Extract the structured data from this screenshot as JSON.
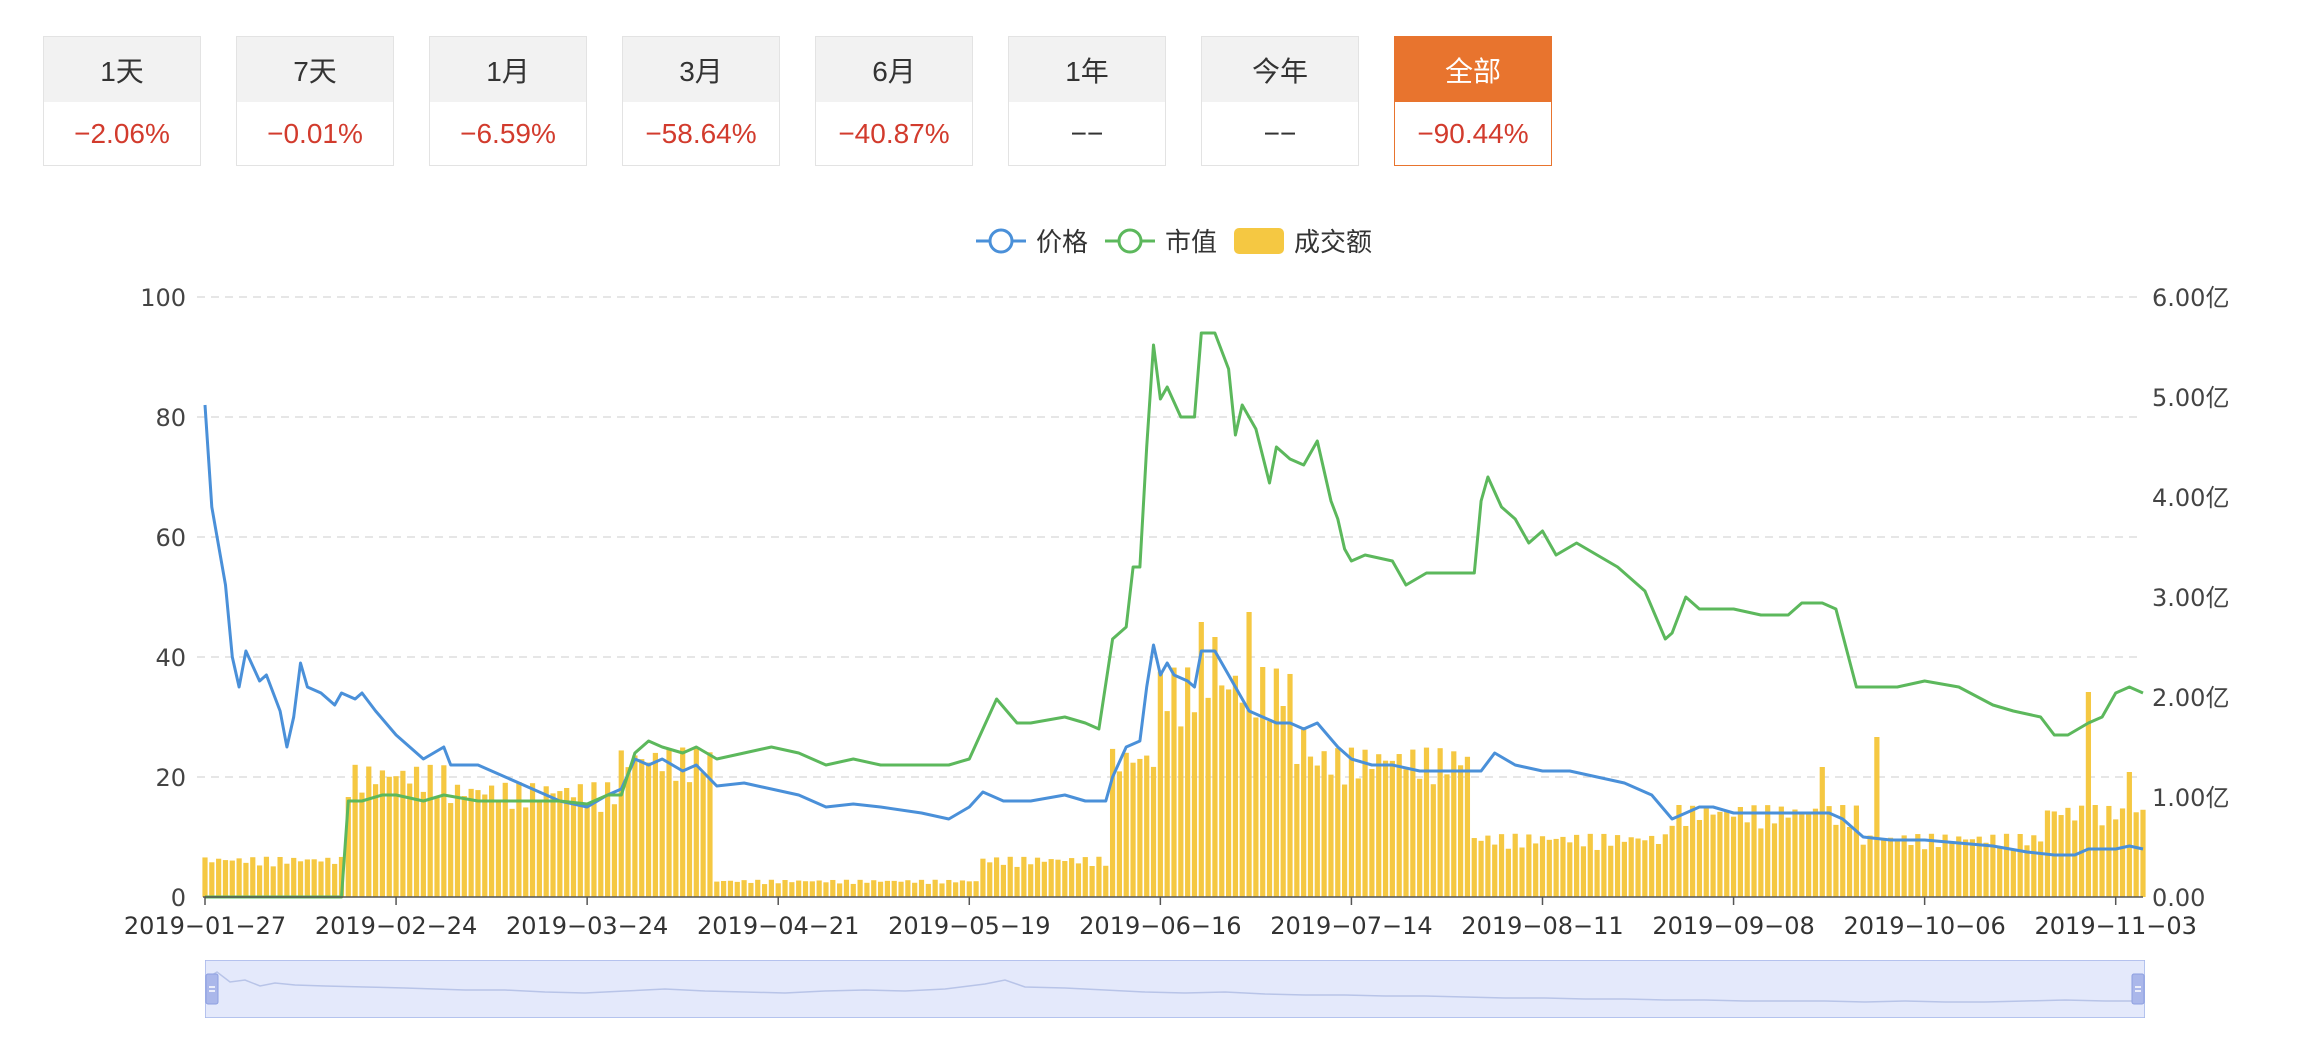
{
  "tabs": [
    {
      "label": "1天",
      "value": "−2.06%",
      "active": false,
      "neutral": false
    },
    {
      "label": "7天",
      "value": "−0.01%",
      "active": false,
      "neutral": false
    },
    {
      "label": "1月",
      "value": "−6.59%",
      "active": false,
      "neutral": false
    },
    {
      "label": "3月",
      "value": "−58.64%",
      "active": false,
      "neutral": false
    },
    {
      "label": "6月",
      "value": "−40.87%",
      "active": false,
      "neutral": false
    },
    {
      "label": "1年",
      "value": "−−",
      "active": false,
      "neutral": true
    },
    {
      "label": "今年",
      "value": "−−",
      "active": false,
      "neutral": true
    },
    {
      "label": "全部",
      "value": "−90.44%",
      "active": true,
      "neutral": false
    }
  ],
  "colors": {
    "price": "#4a90d9",
    "market_cap": "#5cb85c",
    "volume": "#f5c842",
    "accent": "#e8742e",
    "negative": "#d23b2d"
  },
  "chart_data": {
    "type": "line",
    "x_tick_labels": [
      "2019−01−27",
      "2019−02−24",
      "2019−03−24",
      "2019−04−21",
      "2019−05−19",
      "2019−06−16",
      "2019−07−14",
      "2019−08−11",
      "2019−09−08",
      "2019−10−06",
      "2019−11−03"
    ],
    "x_ticks": [
      "2019-01-27",
      "2019-02-24",
      "2019-03-24",
      "2019-04-21",
      "2019-05-19",
      "2019-06-16",
      "2019-07-14",
      "2019-08-11",
      "2019-09-08",
      "2019-10-06",
      "2019-11-03"
    ],
    "x_range": [
      "2019-01-27",
      "2019-11-07"
    ],
    "left_axis": {
      "min": 0,
      "max": 100,
      "ticks": [
        0,
        20,
        40,
        60,
        80,
        100
      ],
      "tick_labels": [
        "0",
        "20",
        "40",
        "60",
        "80",
        "100"
      ]
    },
    "right_axis": {
      "min": 0,
      "max": 6,
      "tick_labels": [
        "0.00",
        "1.00亿",
        "2.00亿",
        "3.00亿",
        "4.00亿",
        "5.00亿",
        "6.00亿"
      ]
    },
    "grid": true,
    "legend_position": "top-center",
    "series": [
      {
        "name": "价格",
        "kind": "line",
        "axis": "left",
        "points": [
          [
            "2019-01-27",
            82
          ],
          [
            "2019-01-28",
            65
          ],
          [
            "2019-01-30",
            52
          ],
          [
            "2019-01-31",
            40
          ],
          [
            "2019-02-01",
            35
          ],
          [
            "2019-02-02",
            41
          ],
          [
            "2019-02-04",
            36
          ],
          [
            "2019-02-05",
            37
          ],
          [
            "2019-02-07",
            31
          ],
          [
            "2019-02-08",
            25
          ],
          [
            "2019-02-09",
            30
          ],
          [
            "2019-02-10",
            39
          ],
          [
            "2019-02-11",
            35
          ],
          [
            "2019-02-13",
            34
          ],
          [
            "2019-02-15",
            32
          ],
          [
            "2019-02-16",
            34
          ],
          [
            "2019-02-18",
            33
          ],
          [
            "2019-02-19",
            34
          ],
          [
            "2019-02-21",
            31
          ],
          [
            "2019-02-24",
            27
          ],
          [
            "2019-02-28",
            23
          ],
          [
            "2019-03-03",
            25
          ],
          [
            "2019-03-04",
            22
          ],
          [
            "2019-03-08",
            22
          ],
          [
            "2019-03-12",
            20
          ],
          [
            "2019-03-16",
            18
          ],
          [
            "2019-03-20",
            16
          ],
          [
            "2019-03-24",
            15
          ],
          [
            "2019-03-27",
            17
          ],
          [
            "2019-03-29",
            18
          ],
          [
            "2019-03-31",
            23
          ],
          [
            "2019-04-02",
            22
          ],
          [
            "2019-04-04",
            23
          ],
          [
            "2019-04-07",
            21
          ],
          [
            "2019-04-09",
            22
          ],
          [
            "2019-04-12",
            18.5
          ],
          [
            "2019-04-16",
            19
          ],
          [
            "2019-04-20",
            18
          ],
          [
            "2019-04-24",
            17
          ],
          [
            "2019-04-28",
            15
          ],
          [
            "2019-05-02",
            15.5
          ],
          [
            "2019-05-06",
            15
          ],
          [
            "2019-05-12",
            14
          ],
          [
            "2019-05-16",
            13
          ],
          [
            "2019-05-19",
            15
          ],
          [
            "2019-05-21",
            17.5
          ],
          [
            "2019-05-24",
            16
          ],
          [
            "2019-05-28",
            16
          ],
          [
            "2019-06-02",
            17
          ],
          [
            "2019-06-05",
            16
          ],
          [
            "2019-06-08",
            16
          ],
          [
            "2019-06-09",
            20
          ],
          [
            "2019-06-11",
            25
          ],
          [
            "2019-06-13",
            26
          ],
          [
            "2019-06-14",
            35
          ],
          [
            "2019-06-15",
            42
          ],
          [
            "2019-06-16",
            37
          ],
          [
            "2019-06-17",
            39
          ],
          [
            "2019-06-18",
            37
          ],
          [
            "2019-06-20",
            36
          ],
          [
            "2019-06-21",
            35
          ],
          [
            "2019-06-22",
            41
          ],
          [
            "2019-06-24",
            41
          ],
          [
            "2019-06-26",
            37
          ],
          [
            "2019-06-27",
            35
          ],
          [
            "2019-06-29",
            31
          ],
          [
            "2019-07-01",
            30
          ],
          [
            "2019-07-03",
            29
          ],
          [
            "2019-07-05",
            29
          ],
          [
            "2019-07-07",
            28
          ],
          [
            "2019-07-09",
            29
          ],
          [
            "2019-07-12",
            25
          ],
          [
            "2019-07-14",
            23
          ],
          [
            "2019-07-17",
            22
          ],
          [
            "2019-07-20",
            22
          ],
          [
            "2019-07-24",
            21
          ],
          [
            "2019-07-28",
            21
          ],
          [
            "2019-08-02",
            21
          ],
          [
            "2019-08-04",
            24
          ],
          [
            "2019-08-07",
            22
          ],
          [
            "2019-08-11",
            21
          ],
          [
            "2019-08-15",
            21
          ],
          [
            "2019-08-19",
            20
          ],
          [
            "2019-08-23",
            19
          ],
          [
            "2019-08-27",
            17
          ],
          [
            "2019-08-30",
            13
          ],
          [
            "2019-09-01",
            14
          ],
          [
            "2019-09-03",
            15
          ],
          [
            "2019-09-05",
            15
          ],
          [
            "2019-09-08",
            14
          ],
          [
            "2019-09-12",
            14
          ],
          [
            "2019-09-16",
            14
          ],
          [
            "2019-09-19",
            14
          ],
          [
            "2019-09-22",
            14
          ],
          [
            "2019-09-24",
            13
          ],
          [
            "2019-09-27",
            10
          ],
          [
            "2019-10-01",
            9.5
          ],
          [
            "2019-10-06",
            9.5
          ],
          [
            "2019-10-11",
            9
          ],
          [
            "2019-10-16",
            8.5
          ],
          [
            "2019-10-21",
            7.5
          ],
          [
            "2019-10-25",
            7
          ],
          [
            "2019-10-28",
            7
          ],
          [
            "2019-10-30",
            8
          ],
          [
            "2019-11-01",
            8
          ],
          [
            "2019-11-03",
            8
          ],
          [
            "2019-11-05",
            8.5
          ],
          [
            "2019-11-07",
            8
          ]
        ]
      },
      {
        "name": "市值",
        "kind": "line",
        "axis": "left",
        "points": [
          [
            "2019-01-27",
            0
          ],
          [
            "2019-02-16",
            0
          ],
          [
            "2019-02-17",
            16
          ],
          [
            "2019-02-19",
            16
          ],
          [
            "2019-02-22",
            17
          ],
          [
            "2019-02-24",
            17
          ],
          [
            "2019-02-28",
            16
          ],
          [
            "2019-03-03",
            17
          ],
          [
            "2019-03-08",
            16
          ],
          [
            "2019-03-12",
            16
          ],
          [
            "2019-03-16",
            16
          ],
          [
            "2019-03-20",
            16
          ],
          [
            "2019-03-24",
            15.5
          ],
          [
            "2019-03-27",
            17
          ],
          [
            "2019-03-29",
            17
          ],
          [
            "2019-03-31",
            24
          ],
          [
            "2019-04-02",
            26
          ],
          [
            "2019-04-04",
            25
          ],
          [
            "2019-04-07",
            24
          ],
          [
            "2019-04-09",
            25
          ],
          [
            "2019-04-12",
            23
          ],
          [
            "2019-04-16",
            24
          ],
          [
            "2019-04-20",
            25
          ],
          [
            "2019-04-24",
            24
          ],
          [
            "2019-04-28",
            22
          ],
          [
            "2019-05-02",
            23
          ],
          [
            "2019-05-06",
            22
          ],
          [
            "2019-05-12",
            22
          ],
          [
            "2019-05-16",
            22
          ],
          [
            "2019-05-19",
            23
          ],
          [
            "2019-05-21",
            28
          ],
          [
            "2019-05-23",
            33
          ],
          [
            "2019-05-26",
            29
          ],
          [
            "2019-05-28",
            29
          ],
          [
            "2019-06-02",
            30
          ],
          [
            "2019-06-05",
            29
          ],
          [
            "2019-06-07",
            28
          ],
          [
            "2019-06-09",
            43
          ],
          [
            "2019-06-11",
            45
          ],
          [
            "2019-06-12",
            55
          ],
          [
            "2019-06-13",
            55
          ],
          [
            "2019-06-14",
            75
          ],
          [
            "2019-06-15",
            92
          ],
          [
            "2019-06-16",
            83
          ],
          [
            "2019-06-17",
            85
          ],
          [
            "2019-06-19",
            80
          ],
          [
            "2019-06-21",
            80
          ],
          [
            "2019-06-22",
            94
          ],
          [
            "2019-06-24",
            94
          ],
          [
            "2019-06-26",
            88
          ],
          [
            "2019-06-27",
            77
          ],
          [
            "2019-06-28",
            82
          ],
          [
            "2019-06-30",
            78
          ],
          [
            "2019-07-02",
            69
          ],
          [
            "2019-07-03",
            75
          ],
          [
            "2019-07-05",
            73
          ],
          [
            "2019-07-07",
            72
          ],
          [
            "2019-07-09",
            76
          ],
          [
            "2019-07-11",
            66
          ],
          [
            "2019-07-12",
            63
          ],
          [
            "2019-07-13",
            58
          ],
          [
            "2019-07-14",
            56
          ],
          [
            "2019-07-16",
            57
          ],
          [
            "2019-07-20",
            56
          ],
          [
            "2019-07-22",
            52
          ],
          [
            "2019-07-25",
            54
          ],
          [
            "2019-07-28",
            54
          ],
          [
            "2019-08-01",
            54
          ],
          [
            "2019-08-02",
            66
          ],
          [
            "2019-08-03",
            70
          ],
          [
            "2019-08-05",
            65
          ],
          [
            "2019-08-07",
            63
          ],
          [
            "2019-08-09",
            59
          ],
          [
            "2019-08-11",
            61
          ],
          [
            "2019-08-13",
            57
          ],
          [
            "2019-08-16",
            59
          ],
          [
            "2019-08-19",
            57
          ],
          [
            "2019-08-22",
            55
          ],
          [
            "2019-08-26",
            51
          ],
          [
            "2019-08-29",
            43
          ],
          [
            "2019-08-30",
            44
          ],
          [
            "2019-09-01",
            50
          ],
          [
            "2019-09-03",
            48
          ],
          [
            "2019-09-06",
            48
          ],
          [
            "2019-09-08",
            48
          ],
          [
            "2019-09-12",
            47
          ],
          [
            "2019-09-16",
            47
          ],
          [
            "2019-09-18",
            49
          ],
          [
            "2019-09-21",
            49
          ],
          [
            "2019-09-23",
            48
          ],
          [
            "2019-09-26",
            35
          ],
          [
            "2019-09-29",
            35
          ],
          [
            "2019-10-02",
            35
          ],
          [
            "2019-10-06",
            36
          ],
          [
            "2019-10-11",
            35
          ],
          [
            "2019-10-16",
            32
          ],
          [
            "2019-10-19",
            31
          ],
          [
            "2019-10-23",
            30
          ],
          [
            "2019-10-25",
            27
          ],
          [
            "2019-10-27",
            27
          ],
          [
            "2019-10-30",
            29
          ],
          [
            "2019-11-01",
            30
          ],
          [
            "2019-11-03",
            34
          ],
          [
            "2019-11-05",
            35
          ],
          [
            "2019-11-07",
            34
          ]
        ]
      },
      {
        "name": "成交额",
        "kind": "bar",
        "axis": "right",
        "segments": [
          {
            "from": "2019-01-27",
            "to": "2019-02-16",
            "value": 0.35
          },
          {
            "from": "2019-02-17",
            "to": "2019-03-03",
            "value": 1.15
          },
          {
            "from": "2019-03-04",
            "to": "2019-03-28",
            "value": 1.0
          },
          {
            "from": "2019-03-29",
            "to": "2019-04-11",
            "value": 1.3
          },
          {
            "from": "2019-04-12",
            "to": "2019-05-20",
            "value": 0.15
          },
          {
            "from": "2019-05-21",
            "to": "2019-06-08",
            "value": 0.35
          },
          {
            "from": "2019-06-09",
            "to": "2019-06-15",
            "value": 1.3
          },
          {
            "from": "2019-06-16",
            "to": "2019-07-05",
            "value": 2.0
          },
          {
            "from": "2019-07-06",
            "to": "2019-07-31",
            "value": 1.3
          },
          {
            "from": "2019-08-01",
            "to": "2019-08-29",
            "value": 0.55
          },
          {
            "from": "2019-08-30",
            "to": "2019-09-26",
            "value": 0.8
          },
          {
            "from": "2019-09-27",
            "to": "2019-10-23",
            "value": 0.55
          },
          {
            "from": "2019-10-24",
            "to": "2019-11-07",
            "value": 0.8
          }
        ],
        "spikes": [
          [
            "2019-06-22",
            2.75
          ],
          [
            "2019-06-24",
            2.6
          ],
          [
            "2019-06-29",
            2.85
          ],
          [
            "2019-07-07",
            1.7
          ],
          [
            "2019-09-21",
            1.3
          ],
          [
            "2019-09-29",
            1.6
          ],
          [
            "2019-10-30",
            2.05
          ],
          [
            "2019-11-05",
            1.25
          ]
        ]
      }
    ]
  }
}
